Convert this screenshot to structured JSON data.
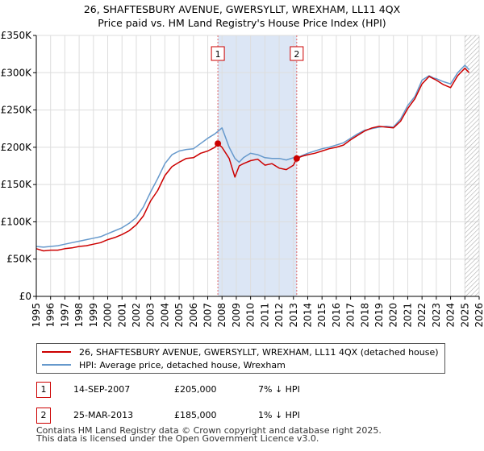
{
  "title": {
    "line1": "26, SHAFTESBURY AVENUE, GWERSYLLT, WREXHAM, LL11 4QX",
    "line2": "Price paid vs. HM Land Registry's House Price Index (HPI)"
  },
  "colors": {
    "property": "#cc0000",
    "hpi": "#6699cc",
    "band": "#dce6f5",
    "grid": "#dddddd",
    "marker_line": "#e06666"
  },
  "chart_data": {
    "type": "line",
    "title": "Price paid vs. HM Land Registry's House Price Index (HPI)",
    "xlabel": "",
    "ylabel": "",
    "xlim": [
      1995,
      2026
    ],
    "ylim": [
      0,
      350000
    ],
    "x_ticks": [
      "1995",
      "1996",
      "1997",
      "1998",
      "1999",
      "2000",
      "2001",
      "2002",
      "2003",
      "2004",
      "2005",
      "2006",
      "2007",
      "2008",
      "2009",
      "2010",
      "2011",
      "2012",
      "2013",
      "2014",
      "2015",
      "2016",
      "2017",
      "2018",
      "2019",
      "2020",
      "2021",
      "2022",
      "2023",
      "2024",
      "2025",
      "2026"
    ],
    "y_ticks": [
      {
        "value": 0,
        "label": "£0"
      },
      {
        "value": 50000,
        "label": "£50K"
      },
      {
        "value": 100000,
        "label": "£100K"
      },
      {
        "value": 150000,
        "label": "£150K"
      },
      {
        "value": 200000,
        "label": "£200K"
      },
      {
        "value": 250000,
        "label": "£250K"
      },
      {
        "value": 300000,
        "label": "£300K"
      },
      {
        "value": 350000,
        "label": "£350K"
      }
    ],
    "grid": true,
    "shaded_period": [
      2007.71,
      2013.23
    ],
    "hatched_from": 2025.0,
    "series": [
      {
        "name": "26, SHAFTESBURY AVENUE, GWERSYLLT, WREXHAM, LL11 4QX (detached house)",
        "x": [
          1995.0,
          1995.5,
          1996.0,
          1996.5,
          1997.0,
          1997.5,
          1998.0,
          1998.5,
          1999.0,
          1999.5,
          2000.0,
          2000.5,
          2001.0,
          2001.5,
          2002.0,
          2002.5,
          2003.0,
          2003.5,
          2004.0,
          2004.5,
          2005.0,
          2005.5,
          2006.0,
          2006.5,
          2007.0,
          2007.5,
          2007.71,
          2008.0,
          2008.5,
          2008.9,
          2009.2,
          2009.5,
          2010.0,
          2010.5,
          2011.0,
          2011.5,
          2012.0,
          2012.5,
          2013.0,
          2013.23,
          2013.6,
          2014.0,
          2014.5,
          2015.0,
          2015.5,
          2016.0,
          2016.5,
          2017.0,
          2017.5,
          2018.0,
          2018.5,
          2019.0,
          2019.5,
          2020.0,
          2020.5,
          2021.0,
          2021.5,
          2022.0,
          2022.5,
          2022.8,
          2023.0,
          2023.5,
          2024.0,
          2024.5,
          2025.0,
          2025.3
        ],
        "values": [
          64000,
          61000,
          62000,
          62000,
          64000,
          65000,
          67000,
          68000,
          70000,
          72000,
          76000,
          79000,
          83000,
          88000,
          96000,
          108000,
          128000,
          142000,
          162000,
          174000,
          180000,
          185000,
          186000,
          192000,
          195000,
          200000,
          205000,
          200000,
          185000,
          160000,
          175000,
          178000,
          182000,
          184000,
          176000,
          178000,
          172000,
          170000,
          176000,
          185000,
          188000,
          190000,
          192000,
          195000,
          198000,
          200000,
          203000,
          210000,
          216000,
          222000,
          226000,
          228000,
          227000,
          226000,
          235000,
          252000,
          265000,
          285000,
          295000,
          292000,
          290000,
          284000,
          280000,
          296000,
          306000,
          300000
        ]
      },
      {
        "name": "HPI: Average price, detached house, Wrexham",
        "x": [
          1995.0,
          1995.5,
          1996.0,
          1996.5,
          1997.0,
          1997.5,
          1998.0,
          1998.5,
          1999.0,
          1999.5,
          2000.0,
          2000.5,
          2001.0,
          2001.5,
          2002.0,
          2002.5,
          2003.0,
          2003.5,
          2004.0,
          2004.5,
          2005.0,
          2005.5,
          2006.0,
          2006.5,
          2007.0,
          2007.5,
          2008.0,
          2008.5,
          2008.9,
          2009.2,
          2009.5,
          2010.0,
          2010.5,
          2011.0,
          2011.5,
          2012.0,
          2012.5,
          2013.0,
          2013.5,
          2014.0,
          2014.5,
          2015.0,
          2015.5,
          2016.0,
          2016.5,
          2017.0,
          2017.5,
          2018.0,
          2018.5,
          2019.0,
          2019.5,
          2020.0,
          2020.5,
          2021.0,
          2021.5,
          2022.0,
          2022.5,
          2022.8,
          2023.0,
          2023.5,
          2024.0,
          2024.5,
          2025.0,
          2025.3
        ],
        "values": [
          67000,
          66000,
          67000,
          68000,
          70000,
          72000,
          74000,
          76000,
          78000,
          80000,
          84000,
          88000,
          92000,
          98000,
          106000,
          120000,
          140000,
          158000,
          178000,
          190000,
          195000,
          197000,
          198000,
          205000,
          212000,
          218000,
          226000,
          200000,
          185000,
          180000,
          186000,
          192000,
          190000,
          186000,
          185000,
          185000,
          183000,
          186000,
          188000,
          192000,
          195000,
          198000,
          200000,
          203000,
          206000,
          212000,
          218000,
          223000,
          225000,
          227000,
          228000,
          227000,
          238000,
          256000,
          268000,
          290000,
          296000,
          293000,
          292000,
          288000,
          285000,
          300000,
          310000,
          304000
        ]
      }
    ],
    "annotations": [
      {
        "label": "1",
        "x": 2007.71,
        "value": 205000
      },
      {
        "label": "2",
        "x": 2013.23,
        "value": 185000
      }
    ]
  },
  "legend": {
    "property_label": "26, SHAFTESBURY AVENUE, GWERSYLLT, WREXHAM, LL11 4QX (detached house)",
    "hpi_label": "HPI: Average price, detached house, Wrexham"
  },
  "sales": [
    {
      "badge": "1",
      "date": "14-SEP-2007",
      "price": "£205,000",
      "hpi": "7% ↓ HPI"
    },
    {
      "badge": "2",
      "date": "25-MAR-2013",
      "price": "£185,000",
      "hpi": "1% ↓ HPI"
    }
  ],
  "footer": {
    "line1": "Contains HM Land Registry data © Crown copyright and database right 2025.",
    "line2": "This data is licensed under the Open Government Licence v3.0."
  }
}
